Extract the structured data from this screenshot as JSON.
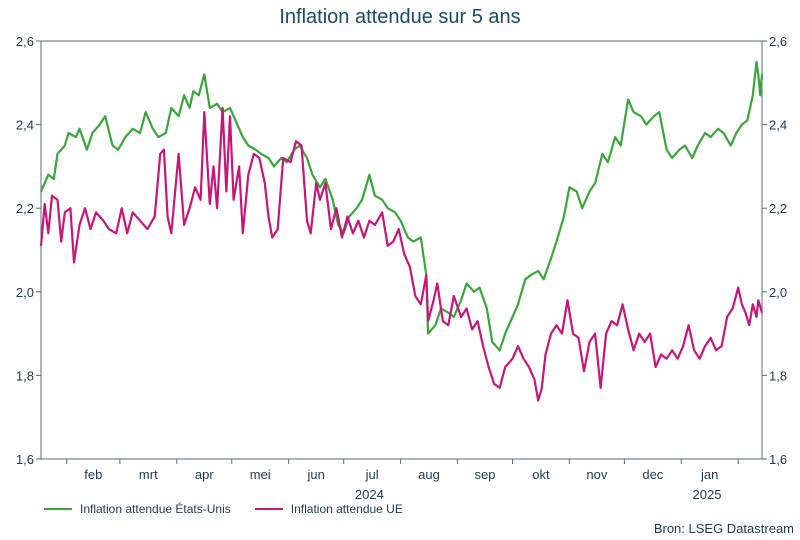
{
  "chart_data": {
    "type": "line",
    "title": "Inflation attendue sur 5 ans",
    "source": "Bron: LSEG Datastream",
    "ylim": [
      1.6,
      2.6
    ],
    "y_ticks": [
      "1,6",
      "1,8",
      "2,0",
      "2,2",
      "2,4",
      "2,6"
    ],
    "y_tick_values": [
      1.6,
      1.8,
      2.0,
      2.2,
      2.4,
      2.6
    ],
    "x_month_labels": [
      "feb",
      "mrt",
      "apr",
      "mei",
      "jun",
      "jul",
      "aug",
      "sep",
      "okt",
      "nov",
      "dec",
      "jan"
    ],
    "x_year_labels": [
      "2024",
      "2025"
    ],
    "x_range": [
      "2024-01-18",
      "2025-02-14"
    ],
    "grid": false,
    "legend_position": "bottom-left",
    "series": [
      {
        "name": "Inflation attendue  États-Unis",
        "color": "#3aa63a",
        "points": [
          [
            "2024-01-18",
            2.24
          ],
          [
            "2024-01-22",
            2.28
          ],
          [
            "2024-01-25",
            2.27
          ],
          [
            "2024-01-27",
            2.33
          ],
          [
            "2024-01-31",
            2.35
          ],
          [
            "2024-02-02",
            2.38
          ],
          [
            "2024-02-06",
            2.37
          ],
          [
            "2024-02-08",
            2.39
          ],
          [
            "2024-02-12",
            2.34
          ],
          [
            "2024-02-15",
            2.38
          ],
          [
            "2024-02-19",
            2.4
          ],
          [
            "2024-02-22",
            2.42
          ],
          [
            "2024-02-26",
            2.35
          ],
          [
            "2024-02-29",
            2.34
          ],
          [
            "2024-03-04",
            2.37
          ],
          [
            "2024-03-08",
            2.39
          ],
          [
            "2024-03-12",
            2.38
          ],
          [
            "2024-03-15",
            2.43
          ],
          [
            "2024-03-19",
            2.39
          ],
          [
            "2024-03-22",
            2.37
          ],
          [
            "2024-03-26",
            2.38
          ],
          [
            "2024-03-29",
            2.44
          ],
          [
            "2024-04-02",
            2.42
          ],
          [
            "2024-04-05",
            2.47
          ],
          [
            "2024-04-08",
            2.44
          ],
          [
            "2024-04-10",
            2.48
          ],
          [
            "2024-04-13",
            2.47
          ],
          [
            "2024-04-16",
            2.52
          ],
          [
            "2024-04-19",
            2.44
          ],
          [
            "2024-04-23",
            2.45
          ],
          [
            "2024-04-26",
            2.43
          ],
          [
            "2024-04-30",
            2.44
          ],
          [
            "2024-05-03",
            2.41
          ],
          [
            "2024-05-07",
            2.37
          ],
          [
            "2024-05-10",
            2.35
          ],
          [
            "2024-05-14",
            2.34
          ],
          [
            "2024-05-17",
            2.33
          ],
          [
            "2024-05-21",
            2.32
          ],
          [
            "2024-05-24",
            2.3
          ],
          [
            "2024-05-28",
            2.32
          ],
          [
            "2024-05-31",
            2.31
          ],
          [
            "2024-06-04",
            2.34
          ],
          [
            "2024-06-07",
            2.35
          ],
          [
            "2024-06-11",
            2.32
          ],
          [
            "2024-06-14",
            2.28
          ],
          [
            "2024-06-18",
            2.25
          ],
          [
            "2024-06-21",
            2.27
          ],
          [
            "2024-06-25",
            2.22
          ],
          [
            "2024-06-28",
            2.16
          ],
          [
            "2024-07-01",
            2.14
          ],
          [
            "2024-07-04",
            2.18
          ],
          [
            "2024-07-08",
            2.2
          ],
          [
            "2024-07-11",
            2.22
          ],
          [
            "2024-07-15",
            2.28
          ],
          [
            "2024-07-18",
            2.23
          ],
          [
            "2024-07-22",
            2.22
          ],
          [
            "2024-07-25",
            2.2
          ],
          [
            "2024-07-29",
            2.19
          ],
          [
            "2024-08-01",
            2.17
          ],
          [
            "2024-08-05",
            2.13
          ],
          [
            "2024-08-08",
            2.12
          ],
          [
            "2024-08-12",
            2.13
          ],
          [
            "2024-08-15",
            2.04
          ],
          [
            "2024-08-16",
            1.9
          ],
          [
            "2024-08-20",
            1.92
          ],
          [
            "2024-08-23",
            1.96
          ],
          [
            "2024-08-27",
            1.95
          ],
          [
            "2024-08-30",
            1.94
          ],
          [
            "2024-09-03",
            1.98
          ],
          [
            "2024-09-06",
            2.02
          ],
          [
            "2024-09-10",
            2.0
          ],
          [
            "2024-09-13",
            2.01
          ],
          [
            "2024-09-17",
            1.96
          ],
          [
            "2024-09-20",
            1.88
          ],
          [
            "2024-09-24",
            1.86
          ],
          [
            "2024-09-27",
            1.9
          ],
          [
            "2024-10-01",
            1.94
          ],
          [
            "2024-10-04",
            1.97
          ],
          [
            "2024-10-08",
            2.03
          ],
          [
            "2024-10-11",
            2.04
          ],
          [
            "2024-10-15",
            2.05
          ],
          [
            "2024-10-18",
            2.03
          ],
          [
            "2024-10-22",
            2.08
          ],
          [
            "2024-10-25",
            2.12
          ],
          [
            "2024-10-29",
            2.18
          ],
          [
            "2024-11-01",
            2.25
          ],
          [
            "2024-11-05",
            2.24
          ],
          [
            "2024-11-08",
            2.2
          ],
          [
            "2024-11-12",
            2.24
          ],
          [
            "2024-11-15",
            2.26
          ],
          [
            "2024-11-19",
            2.33
          ],
          [
            "2024-11-22",
            2.31
          ],
          [
            "2024-11-26",
            2.37
          ],
          [
            "2024-11-29",
            2.35
          ],
          [
            "2024-12-03",
            2.46
          ],
          [
            "2024-12-06",
            2.43
          ],
          [
            "2024-12-10",
            2.42
          ],
          [
            "2024-12-13",
            2.4
          ],
          [
            "2024-12-17",
            2.42
          ],
          [
            "2024-12-20",
            2.43
          ],
          [
            "2024-12-24",
            2.34
          ],
          [
            "2024-12-27",
            2.32
          ],
          [
            "2024-12-31",
            2.34
          ],
          [
            "2025-01-03",
            2.35
          ],
          [
            "2025-01-07",
            2.32
          ],
          [
            "2025-01-10",
            2.35
          ],
          [
            "2025-01-14",
            2.38
          ],
          [
            "2025-01-17",
            2.37
          ],
          [
            "2025-01-21",
            2.39
          ],
          [
            "2025-01-24",
            2.38
          ],
          [
            "2025-01-28",
            2.35
          ],
          [
            "2025-01-31",
            2.38
          ],
          [
            "2025-02-03",
            2.4
          ],
          [
            "2025-02-06",
            2.41
          ],
          [
            "2025-02-09",
            2.47
          ],
          [
            "2025-02-11",
            2.55
          ],
          [
            "2025-02-12",
            2.52
          ],
          [
            "2025-02-13",
            2.47
          ],
          [
            "2025-02-14",
            2.52
          ]
        ]
      },
      {
        "name": "Inflation attendue UE",
        "color": "#c8157a",
        "points": [
          [
            "2024-01-18",
            2.11
          ],
          [
            "2024-01-20",
            2.21
          ],
          [
            "2024-01-22",
            2.14
          ],
          [
            "2024-01-24",
            2.23
          ],
          [
            "2024-01-27",
            2.22
          ],
          [
            "2024-01-29",
            2.12
          ],
          [
            "2024-01-31",
            2.19
          ],
          [
            "2024-02-03",
            2.2
          ],
          [
            "2024-02-05",
            2.07
          ],
          [
            "2024-02-08",
            2.16
          ],
          [
            "2024-02-11",
            2.2
          ],
          [
            "2024-02-14",
            2.15
          ],
          [
            "2024-02-17",
            2.19
          ],
          [
            "2024-02-21",
            2.17
          ],
          [
            "2024-02-24",
            2.15
          ],
          [
            "2024-02-28",
            2.14
          ],
          [
            "2024-03-02",
            2.2
          ],
          [
            "2024-03-05",
            2.14
          ],
          [
            "2024-03-08",
            2.19
          ],
          [
            "2024-03-12",
            2.17
          ],
          [
            "2024-03-16",
            2.15
          ],
          [
            "2024-03-20",
            2.18
          ],
          [
            "2024-03-23",
            2.33
          ],
          [
            "2024-03-25",
            2.34
          ],
          [
            "2024-03-27",
            2.18
          ],
          [
            "2024-03-29",
            2.14
          ],
          [
            "2024-04-02",
            2.33
          ],
          [
            "2024-04-05",
            2.16
          ],
          [
            "2024-04-08",
            2.2
          ],
          [
            "2024-04-11",
            2.25
          ],
          [
            "2024-04-14",
            2.22
          ],
          [
            "2024-04-16",
            2.43
          ],
          [
            "2024-04-19",
            2.21
          ],
          [
            "2024-04-21",
            2.3
          ],
          [
            "2024-04-23",
            2.2
          ],
          [
            "2024-04-26",
            2.44
          ],
          [
            "2024-04-28",
            2.24
          ],
          [
            "2024-04-30",
            2.42
          ],
          [
            "2024-05-02",
            2.22
          ],
          [
            "2024-05-05",
            2.3
          ],
          [
            "2024-05-07",
            2.14
          ],
          [
            "2024-05-10",
            2.28
          ],
          [
            "2024-05-13",
            2.33
          ],
          [
            "2024-05-16",
            2.32
          ],
          [
            "2024-05-19",
            2.26
          ],
          [
            "2024-05-21",
            2.18
          ],
          [
            "2024-05-23",
            2.13
          ],
          [
            "2024-05-26",
            2.15
          ],
          [
            "2024-05-29",
            2.32
          ],
          [
            "2024-06-02",
            2.31
          ],
          [
            "2024-06-05",
            2.36
          ],
          [
            "2024-06-08",
            2.35
          ],
          [
            "2024-06-11",
            2.17
          ],
          [
            "2024-06-13",
            2.14
          ],
          [
            "2024-06-16",
            2.26
          ],
          [
            "2024-06-18",
            2.22
          ],
          [
            "2024-06-21",
            2.26
          ],
          [
            "2024-06-24",
            2.15
          ],
          [
            "2024-06-27",
            2.2
          ],
          [
            "2024-06-30",
            2.13
          ],
          [
            "2024-07-03",
            2.18
          ],
          [
            "2024-07-06",
            2.14
          ],
          [
            "2024-07-09",
            2.17
          ],
          [
            "2024-07-12",
            2.13
          ],
          [
            "2024-07-15",
            2.17
          ],
          [
            "2024-07-18",
            2.16
          ],
          [
            "2024-07-22",
            2.19
          ],
          [
            "2024-07-25",
            2.11
          ],
          [
            "2024-07-28",
            2.12
          ],
          [
            "2024-07-31",
            2.15
          ],
          [
            "2024-08-03",
            2.09
          ],
          [
            "2024-08-06",
            2.06
          ],
          [
            "2024-08-09",
            1.99
          ],
          [
            "2024-08-12",
            1.97
          ],
          [
            "2024-08-15",
            2.04
          ],
          [
            "2024-08-16",
            1.93
          ],
          [
            "2024-08-19",
            1.98
          ],
          [
            "2024-08-21",
            2.02
          ],
          [
            "2024-08-24",
            1.93
          ],
          [
            "2024-08-27",
            1.92
          ],
          [
            "2024-08-30",
            1.99
          ],
          [
            "2024-09-03",
            1.94
          ],
          [
            "2024-09-06",
            1.96
          ],
          [
            "2024-09-09",
            1.91
          ],
          [
            "2024-09-12",
            1.93
          ],
          [
            "2024-09-15",
            1.87
          ],
          [
            "2024-09-18",
            1.82
          ],
          [
            "2024-09-21",
            1.78
          ],
          [
            "2024-09-24",
            1.77
          ],
          [
            "2024-09-27",
            1.82
          ],
          [
            "2024-10-01",
            1.84
          ],
          [
            "2024-10-04",
            1.87
          ],
          [
            "2024-10-07",
            1.84
          ],
          [
            "2024-10-10",
            1.82
          ],
          [
            "2024-10-13",
            1.79
          ],
          [
            "2024-10-15",
            1.74
          ],
          [
            "2024-10-17",
            1.77
          ],
          [
            "2024-10-19",
            1.85
          ],
          [
            "2024-10-22",
            1.9
          ],
          [
            "2024-10-25",
            1.92
          ],
          [
            "2024-10-28",
            1.9
          ],
          [
            "2024-10-31",
            1.98
          ],
          [
            "2024-11-03",
            1.9
          ],
          [
            "2024-11-06",
            1.89
          ],
          [
            "2024-11-09",
            1.81
          ],
          [
            "2024-11-12",
            1.88
          ],
          [
            "2024-11-15",
            1.9
          ],
          [
            "2024-11-18",
            1.77
          ],
          [
            "2024-11-21",
            1.9
          ],
          [
            "2024-11-24",
            1.93
          ],
          [
            "2024-11-27",
            1.92
          ],
          [
            "2024-11-30",
            1.97
          ],
          [
            "2024-12-03",
            1.91
          ],
          [
            "2024-12-06",
            1.86
          ],
          [
            "2024-12-09",
            1.9
          ],
          [
            "2024-12-12",
            1.88
          ],
          [
            "2024-12-15",
            1.9
          ],
          [
            "2024-12-18",
            1.82
          ],
          [
            "2024-12-21",
            1.85
          ],
          [
            "2024-12-24",
            1.84
          ],
          [
            "2024-12-27",
            1.86
          ],
          [
            "2024-12-30",
            1.84
          ],
          [
            "2025-01-02",
            1.87
          ],
          [
            "2025-01-05",
            1.92
          ],
          [
            "2025-01-08",
            1.86
          ],
          [
            "2025-01-11",
            1.84
          ],
          [
            "2025-01-14",
            1.87
          ],
          [
            "2025-01-17",
            1.89
          ],
          [
            "2025-01-20",
            1.86
          ],
          [
            "2025-01-23",
            1.87
          ],
          [
            "2025-01-26",
            1.94
          ],
          [
            "2025-01-29",
            1.96
          ],
          [
            "2025-02-01",
            2.01
          ],
          [
            "2025-02-03",
            1.97
          ],
          [
            "2025-02-05",
            1.95
          ],
          [
            "2025-02-07",
            1.92
          ],
          [
            "2025-02-09",
            1.97
          ],
          [
            "2025-02-11",
            1.94
          ],
          [
            "2025-02-12",
            1.98
          ],
          [
            "2025-02-14",
            1.95
          ]
        ]
      }
    ]
  }
}
